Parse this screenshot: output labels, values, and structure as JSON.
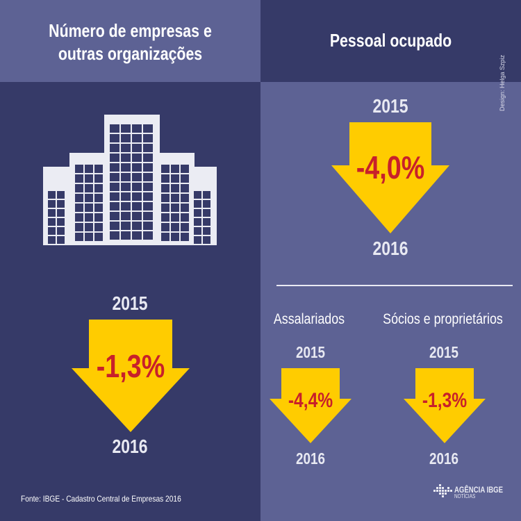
{
  "left": {
    "title_line1": "Número de empresas e",
    "title_line2": "outras organizações",
    "year_from": "2015",
    "change": "-1,3%",
    "year_to": "2016",
    "source": "Fonte: IBGE - Cadastro Central de Empresas 2016"
  },
  "right": {
    "title": "Pessoal ocupado",
    "year_from": "2015",
    "change": "-4,0%",
    "year_to": "2016",
    "credit": "Design: Helga Szpiz",
    "salaried": {
      "label": "Assalariados",
      "year_from": "2015",
      "change": "-4,4%",
      "year_to": "2016"
    },
    "partners": {
      "label": "Sócios e proprietários",
      "year_from": "2015",
      "change": "-1,3%",
      "year_to": "2016"
    },
    "brand_main": "AGÊNCIA IBGE",
    "brand_sub": "NOTÍCIAS"
  },
  "colors": {
    "dark_navy": "#363a68",
    "mid_purple": "#5d6294",
    "arrow_yellow": "#ffcc00",
    "percent_red": "#c8202a",
    "building": "#ebecf3"
  },
  "icons": [
    "building-icon",
    "down-arrow-icon",
    "ibge-logo-icon"
  ]
}
